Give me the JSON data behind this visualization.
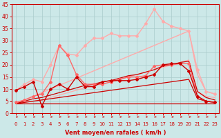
{
  "bg_color": "#cce8e8",
  "grid_color": "#aacccc",
  "xlabel": "Vent moyen/en rafales ( km/h )",
  "xlabel_color": "#cc0000",
  "tick_color": "#cc0000",
  "xlim": [
    -0.5,
    23.5
  ],
  "ylim": [
    0,
    45
  ],
  "yticks": [
    0,
    5,
    10,
    15,
    20,
    25,
    30,
    35,
    40,
    45
  ],
  "xticks": [
    0,
    1,
    2,
    3,
    4,
    5,
    6,
    7,
    8,
    9,
    10,
    11,
    12,
    13,
    14,
    15,
    16,
    17,
    18,
    19,
    20,
    21,
    22,
    23
  ],
  "x": [
    0,
    1,
    2,
    3,
    4,
    5,
    6,
    7,
    8,
    9,
    10,
    11,
    12,
    13,
    14,
    15,
    16,
    17,
    18,
    19,
    20,
    21,
    22,
    23
  ],
  "lines": [
    {
      "y": [
        9.5,
        12.0,
        14.0,
        13.0,
        20.0,
        28.0,
        24.5,
        24.0,
        28.0,
        31.0,
        31.0,
        33.0,
        32.0,
        32.0,
        32.0,
        37.0,
        43.0,
        38.0,
        36.0,
        35.0,
        34.0,
        18.0,
        9.0,
        8.0
      ],
      "color": "#ffaaaa",
      "lw": 1.0,
      "marker": "D",
      "ms": 2.0,
      "zorder": 3
    },
    {
      "y": [
        4.0,
        5.5,
        7.0,
        8.5,
        10.0,
        11.5,
        13.0,
        14.5,
        16.0,
        17.5,
        19.0,
        20.5,
        22.0,
        23.5,
        25.0,
        26.5,
        28.0,
        29.5,
        31.0,
        32.5,
        34.0,
        16.0,
        9.0,
        8.0
      ],
      "color": "#ffaaaa",
      "lw": 1.0,
      "marker": null,
      "ms": 0,
      "zorder": 2
    },
    {
      "y": [
        4.0,
        4.5,
        5.0,
        5.5,
        6.5,
        7.5,
        8.5,
        9.5,
        10.5,
        11.5,
        12.0,
        13.0,
        14.0,
        15.0,
        16.0,
        17.0,
        18.0,
        19.0,
        20.0,
        21.0,
        22.0,
        9.0,
        7.0,
        6.5
      ],
      "color": "#ffaaaa",
      "lw": 0.9,
      "marker": null,
      "ms": 0,
      "zorder": 2
    },
    {
      "y": [
        4.5,
        5.5,
        7.0,
        8.0,
        13.0,
        28.0,
        24.0,
        16.0,
        12.0,
        12.0,
        12.0,
        13.0,
        14.0,
        15.0,
        15.0,
        15.5,
        19.5,
        20.0,
        20.0,
        20.5,
        20.5,
        7.0,
        5.0,
        4.5
      ],
      "color": "#ff6666",
      "lw": 1.0,
      "marker": "D",
      "ms": 2.0,
      "zorder": 4
    },
    {
      "y": [
        9.5,
        11.0,
        13.0,
        3.0,
        10.0,
        12.0,
        10.0,
        15.0,
        11.0,
        11.0,
        13.0,
        13.5,
        13.5,
        13.5,
        14.0,
        15.0,
        16.0,
        20.0,
        20.5,
        20.5,
        17.5,
        7.0,
        5.0,
        4.5
      ],
      "color": "#cc0000",
      "lw": 1.0,
      "marker": "D",
      "ms": 2.0,
      "zorder": 5
    },
    {
      "y": [
        4.0,
        5.0,
        6.0,
        6.5,
        7.5,
        8.5,
        9.5,
        10.5,
        11.5,
        12.0,
        13.0,
        13.5,
        14.5,
        15.5,
        16.0,
        17.0,
        18.0,
        19.5,
        20.0,
        21.0,
        21.5,
        9.0,
        6.5,
        5.5
      ],
      "color": "#cc0000",
      "lw": 0.9,
      "marker": null,
      "ms": 0,
      "zorder": 2
    },
    {
      "y": [
        4.0,
        4.5,
        5.0,
        5.5,
        6.0,
        6.5,
        7.0,
        7.5,
        8.0,
        8.5,
        9.0,
        9.5,
        10.0,
        10.5,
        11.0,
        11.5,
        12.0,
        12.5,
        13.0,
        13.5,
        14.0,
        6.0,
        5.0,
        4.5
      ],
      "color": "#cc0000",
      "lw": 0.9,
      "marker": null,
      "ms": 0,
      "zorder": 2
    },
    {
      "y": [
        4.0,
        4.0,
        4.0,
        4.0,
        4.0,
        4.0,
        4.0,
        4.0,
        4.0,
        4.0,
        4.0,
        4.0,
        4.0,
        4.0,
        4.0,
        4.0,
        4.0,
        4.0,
        4.0,
        4.0,
        4.0,
        4.0,
        4.0,
        4.0
      ],
      "color": "#cc0000",
      "lw": 0.9,
      "marker": null,
      "ms": 0,
      "zorder": 2
    }
  ],
  "arrow_color": "#cc0000"
}
